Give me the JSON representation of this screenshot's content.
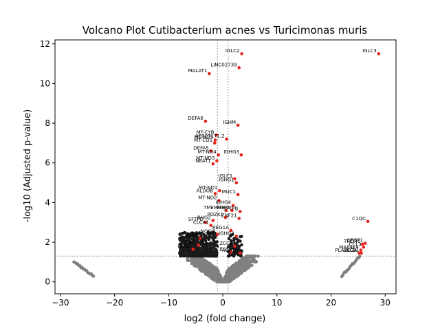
{
  "chart_data": {
    "type": "scatter",
    "title": "Volcano Plot Cutibacterium acnes vs Turicimonas muris",
    "xlabel": "log2 (fold change)",
    "ylabel": "-log10 (Adjusted p-value)",
    "xlim": [
      -31,
      32
    ],
    "ylim": [
      -0.6,
      12.2
    ],
    "xticks": [
      -30,
      -20,
      -10,
      0,
      10,
      20,
      30
    ],
    "yticks": [
      0,
      2,
      4,
      6,
      8,
      10,
      12
    ],
    "xtick_labels": [
      "−30",
      "−20",
      "−10",
      "0",
      "10",
      "20",
      "30"
    ],
    "ytick_labels": [
      "0",
      "2",
      "4",
      "6",
      "8",
      "10",
      "12"
    ],
    "threshold_lines": {
      "x": [
        -1,
        1
      ],
      "y": 1.3
    },
    "colors": {
      "significant": "#e8221c",
      "non_significant": "#808080",
      "threshold": "#808080"
    },
    "significant_points": [
      {
        "label": "IGLC2",
        "x": 3.5,
        "y": 11.5
      },
      {
        "label": "IGLC3",
        "x": 28.8,
        "y": 11.5
      },
      {
        "label": "LINC02739",
        "x": 3.0,
        "y": 10.8
      },
      {
        "label": "MALAT1",
        "x": -2.5,
        "y": 10.5
      },
      {
        "label": "DEFA6",
        "x": -3.2,
        "y": 8.1
      },
      {
        "label": "IGHM",
        "x": 2.8,
        "y": 7.9
      },
      {
        "label": "MT-CYB",
        "x": -1.2,
        "y": 7.4
      },
      {
        "label": "AC007171.2",
        "x": 0.7,
        "y": 7.2
      },
      {
        "label": "MT-ND5",
        "x": -1.4,
        "y": 7.15
      },
      {
        "label": "MT-CO1",
        "x": -1.5,
        "y": 7.0
      },
      {
        "label": "DEFA5",
        "x": -2.2,
        "y": 6.6
      },
      {
        "label": "MT-ND4",
        "x": -0.8,
        "y": 6.4
      },
      {
        "label": "IGHG3",
        "x": 3.4,
        "y": 6.4
      },
      {
        "label": "MT-ND3",
        "x": -1.1,
        "y": 6.1
      },
      {
        "label": "NEAT1",
        "x": -1.8,
        "y": 5.95
      },
      {
        "label": "IGLC1",
        "x": 2.2,
        "y": 5.2
      },
      {
        "label": "IGHG1",
        "x": 2.5,
        "y": 5.0
      },
      {
        "label": "MT-ND1",
        "x": -0.6,
        "y": 4.6
      },
      {
        "label": "ALDOB",
        "x": -1.4,
        "y": 4.45
      },
      {
        "label": "MUC1",
        "x": 2.8,
        "y": 4.4
      },
      {
        "label": "MT-ND2",
        "x": -0.7,
        "y": 4.1
      },
      {
        "label": "IGHG4",
        "x": 1.9,
        "y": 3.85
      },
      {
        "label": "TMEM97",
        "x": 0.6,
        "y": 3.6
      },
      {
        "label": "EMP3",
        "x": 1.7,
        "y": 3.6
      },
      {
        "label": "SFTPB",
        "x": 3.2,
        "y": 3.55
      },
      {
        "label": "PDZK1",
        "x": 0.5,
        "y": 3.25
      },
      {
        "label": "ZNF21",
        "x": 3.0,
        "y": 3.2
      },
      {
        "label": "C1QC",
        "x": 26.8,
        "y": 3.05
      },
      {
        "label": "RHG2",
        "x": -1.8,
        "y": 3.1
      },
      {
        "label": "SFTPD",
        "x": -3.2,
        "y": 3.0
      },
      {
        "label": "CLCA1",
        "x": -2.2,
        "y": 2.85
      },
      {
        "label": "REG1A",
        "x": 1.5,
        "y": 2.6
      },
      {
        "label": "IGHG2",
        "x": 2.5,
        "y": 2.3
      },
      {
        "label": "NOSIP",
        "x": -1.0,
        "y": 2.4
      },
      {
        "label": "HIRA",
        "x": -4.2,
        "y": 2.2
      },
      {
        "label": "ZCC1",
        "x": 2.2,
        "y": 1.8
      },
      {
        "label": "VNN1",
        "x": -4.5,
        "y": 1.85
      },
      {
        "label": "CDK2",
        "x": -5.5,
        "y": 1.65
      },
      {
        "label": "CES2",
        "x": 1.5,
        "y": 1.5
      },
      {
        "label": "ACOT6",
        "x": 3.2,
        "y": 1.45
      },
      {
        "label": "OR5P1",
        "x": 26.3,
        "y": 1.95
      },
      {
        "label": "TRCM1",
        "x": 25.8,
        "y": 1.9
      },
      {
        "label": "CCL3",
        "x": 26.0,
        "y": 1.75
      },
      {
        "label": "MAP4K4",
        "x": 25.5,
        "y": 1.6
      },
      {
        "label": "PLA2G2A",
        "x": 25.2,
        "y": 1.45
      },
      {
        "label": "ABCB1",
        "x": 25.6,
        "y": 1.45
      }
    ]
  }
}
